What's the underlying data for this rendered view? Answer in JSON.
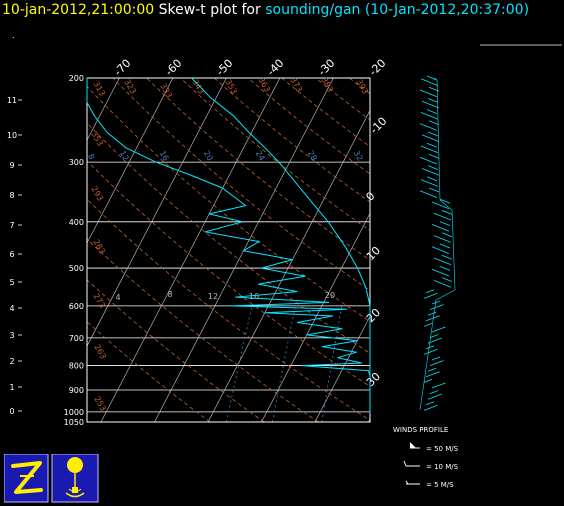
{
  "title": {
    "date": "10-jan-2012,21:00:00",
    "middle": "Skew-t plot for",
    "site": "sounding/gan",
    "time": "(10-Jan-2012,20:37:00)"
  },
  "colors": {
    "background": "#000000",
    "title_date": "#ffff00",
    "title_text": "#ffffff",
    "title_site": "#00e5ff",
    "profile": "#00e5ff",
    "isobar": "#ffffff",
    "isotherm": "#cccccc",
    "dry_adiabat": "#c06030",
    "mixing_ratio": "#4a7cc0",
    "logo_bg": "#1a1ab0",
    "logo_fg": "#ffee00"
  },
  "chart_data": {
    "type": "line",
    "pressure_ticks": [
      200,
      300,
      400,
      500,
      600,
      700,
      800,
      900,
      1000,
      1050
    ],
    "height_km_ticks": [
      "0",
      "1",
      "2",
      "3",
      "4",
      "5",
      "6",
      "7",
      "8",
      "9",
      "10",
      "11"
    ],
    "temp_ticks_top": [
      "-70",
      "-60",
      "-50",
      "-40",
      "-30",
      "-20"
    ],
    "temp_ticks_right": [
      "-10",
      "0",
      "10",
      "20",
      "30"
    ],
    "dry_adiabat_labels": [
      "313",
      "323",
      "333",
      "343",
      "353",
      "363",
      "373",
      "383",
      "393",
      "353",
      "293",
      "283",
      "273",
      "263",
      "253"
    ],
    "mixing_ratio_labels": [
      "8",
      "12",
      "16",
      "20",
      "24",
      "28",
      "32"
    ],
    "mixing_ratio_labels_low": [
      "4",
      "8",
      "12",
      "16",
      "20"
    ],
    "series": [
      {
        "role": "temperature",
        "points": [
          {
            "p": 1005,
            "t": 27.5
          },
          {
            "p": 990,
            "t": 26.0
          },
          {
            "p": 975,
            "t": 25.5
          },
          {
            "p": 950,
            "t": 24.0
          },
          {
            "p": 925,
            "t": 23.0
          },
          {
            "p": 900,
            "t": 21.5
          },
          {
            "p": 875,
            "t": 20.0
          },
          {
            "p": 850,
            "t": 18.5
          },
          {
            "p": 800,
            "t": 15.0
          },
          {
            "p": 750,
            "t": 11.5
          },
          {
            "p": 700,
            "t": 8.5
          },
          {
            "p": 650,
            "t": 5.0
          },
          {
            "p": 600,
            "t": 1.0
          },
          {
            "p": 550,
            "t": -3.5
          },
          {
            "p": 500,
            "t": -7.0
          },
          {
            "p": 450,
            "t": -11.5
          },
          {
            "p": 400,
            "t": -17.0
          },
          {
            "p": 350,
            "t": -24.0
          },
          {
            "p": 300,
            "t": -32.0
          },
          {
            "p": 280,
            "t": -36.0
          },
          {
            "p": 260,
            "t": -40.5
          },
          {
            "p": 240,
            "t": -45.0
          },
          {
            "p": 220,
            "t": -51.0
          },
          {
            "p": 200,
            "t": -56.5
          }
        ]
      },
      {
        "role": "dewpoint",
        "points": [
          {
            "p": 1005,
            "t": 23.5
          },
          {
            "p": 990,
            "t": 22.0
          },
          {
            "p": 975,
            "t": 21.5
          },
          {
            "p": 950,
            "t": 20.0
          },
          {
            "p": 935,
            "t": 14.0
          },
          {
            "p": 925,
            "t": 18.0
          },
          {
            "p": 910,
            "t": 16.5
          },
          {
            "p": 900,
            "t": 10.0
          },
          {
            "p": 880,
            "t": 13.0
          },
          {
            "p": 860,
            "t": 9.0
          },
          {
            "p": 840,
            "t": 11.0
          },
          {
            "p": 820,
            "t": 5.0
          },
          {
            "p": 800,
            "t": -8.0
          },
          {
            "p": 790,
            "t": 3.0
          },
          {
            "p": 770,
            "t": -2.0
          },
          {
            "p": 750,
            "t": 1.0
          },
          {
            "p": 730,
            "t": -6.0
          },
          {
            "p": 710,
            "t": 0.0
          },
          {
            "p": 690,
            "t": -10.0
          },
          {
            "p": 670,
            "t": -4.0
          },
          {
            "p": 650,
            "t": -13.0
          },
          {
            "p": 630,
            "t": -7.0
          },
          {
            "p": 620,
            "t": -20.0
          },
          {
            "p": 610,
            "t": -5.0
          },
          {
            "p": 600,
            "t": -27.0
          },
          {
            "p": 590,
            "t": -9.0
          },
          {
            "p": 575,
            "t": -27.0
          },
          {
            "p": 560,
            "t": -16.0
          },
          {
            "p": 540,
            "t": -24.0
          },
          {
            "p": 520,
            "t": -16.0
          },
          {
            "p": 500,
            "t": -25.0
          },
          {
            "p": 480,
            "t": -20.0
          },
          {
            "p": 460,
            "t": -30.0
          },
          {
            "p": 440,
            "t": -28.0
          },
          {
            "p": 420,
            "t": -39.0
          },
          {
            "p": 400,
            "t": -33.0
          },
          {
            "p": 385,
            "t": -40.0
          },
          {
            "p": 370,
            "t": -34.0
          },
          {
            "p": 340,
            "t": -40.0
          },
          {
            "p": 320,
            "t": -47.0
          },
          {
            "p": 300,
            "t": -55.0
          },
          {
            "p": 280,
            "t": -62.0
          },
          {
            "p": 260,
            "t": -67.0
          },
          {
            "p": 240,
            "t": -71.0
          },
          {
            "p": 225,
            "t": -74.0
          },
          {
            "p": 210,
            "t": -76.0
          },
          {
            "p": 200,
            "t": -77.0
          }
        ]
      }
    ],
    "wind_legend": {
      "title": "WINDS PROFILE",
      "items": [
        "= 50 M/S",
        "= 10 M/S",
        "= 5 M/S"
      ]
    }
  }
}
